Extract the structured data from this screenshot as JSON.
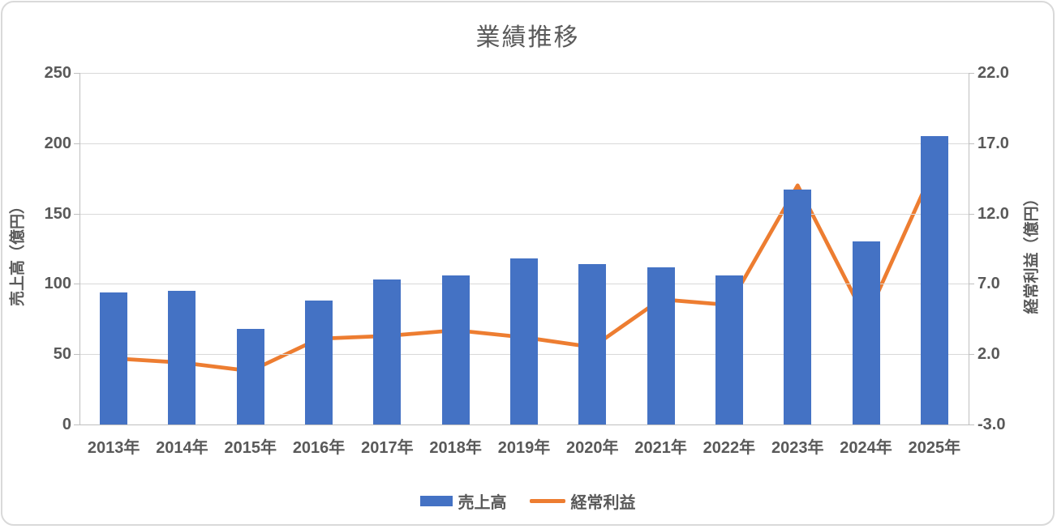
{
  "chart_data": {
    "type": "combo",
    "title": "業績推移",
    "categories": [
      "2013年",
      "2014年",
      "2015年",
      "2016年",
      "2017年",
      "2018年",
      "2019年",
      "2020年",
      "2021年",
      "2022年",
      "2023年",
      "2024年",
      "2025年"
    ],
    "series": [
      {
        "name": "売上高",
        "type": "bar",
        "axis": "left",
        "color": "#4472C4",
        "values": [
          94,
          95,
          68,
          88,
          103,
          106,
          118,
          114,
          112,
          106,
          167,
          130,
          205
        ]
      },
      {
        "name": "経常利益",
        "type": "line",
        "axis": "right",
        "color": "#ED7D31",
        "values": [
          1.7,
          1.4,
          0.8,
          3.1,
          3.3,
          3.7,
          3.2,
          2.5,
          5.9,
          5.5,
          14.0,
          4.5,
          15.3
        ]
      }
    ],
    "y_left": {
      "label": "売上高（億円）",
      "min": 0,
      "max": 250,
      "step": 50,
      "ticks": [
        "0",
        "50",
        "100",
        "150",
        "200",
        "250"
      ]
    },
    "y_right": {
      "label": "経常利益（億円）",
      "min": -3,
      "max": 22,
      "step": 5,
      "ticks": [
        "-3.0",
        "2.0",
        "7.0",
        "12.0",
        "17.0",
        "22.0"
      ]
    },
    "grid": true,
    "legend_position": "bottom",
    "colors": {
      "bar": "#4472C4",
      "line": "#ED7D31",
      "gridline": "#d9d9d9",
      "axis": "#bfbfbf",
      "text": "#595959"
    }
  }
}
